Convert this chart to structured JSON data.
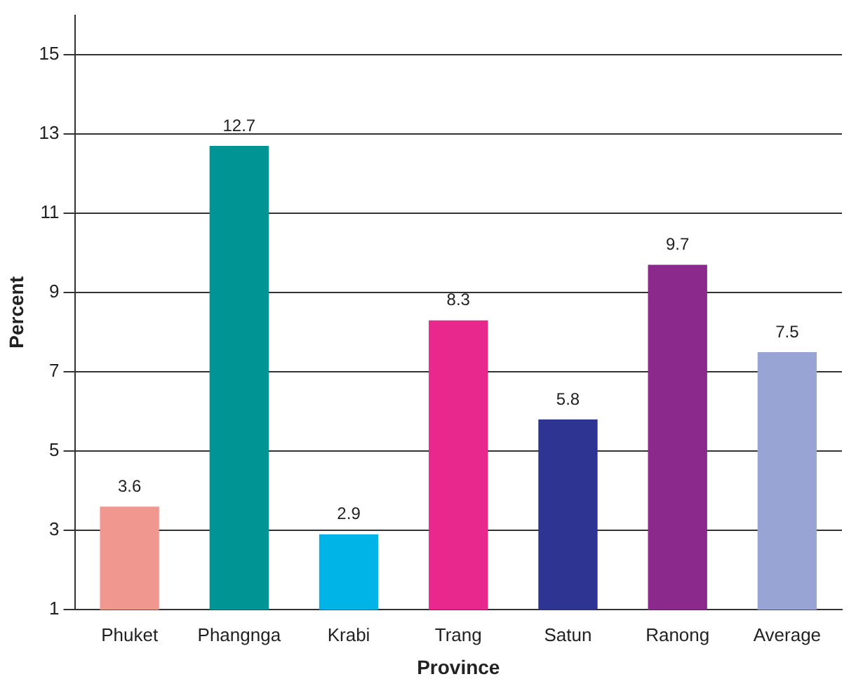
{
  "chart_data": {
    "type": "bar",
    "xlabel": "Province",
    "ylabel": "Percent",
    "categories": [
      "Phuket",
      "Phangnga",
      "Krabi",
      "Trang",
      "Satun",
      "Ranong",
      "Average"
    ],
    "values": [
      3.6,
      12.7,
      2.9,
      8.3,
      5.8,
      9.7,
      7.5
    ],
    "colors": [
      "#f0978f",
      "#009494",
      "#00b4e8",
      "#e8288c",
      "#2e3491",
      "#8b2a8c",
      "#98a4d4"
    ],
    "ylim": [
      1,
      16
    ],
    "yticks": [
      1,
      3,
      5,
      7,
      9,
      11,
      13,
      15
    ],
    "grid": "y",
    "data_labels": true
  }
}
